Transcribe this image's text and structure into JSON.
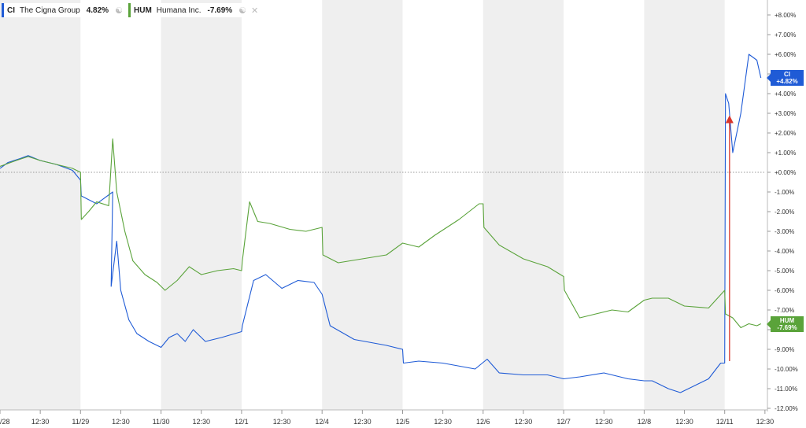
{
  "legend": [
    {
      "ticker": "CI",
      "name": "The Cigna Group",
      "change": "4.82%",
      "color": "#1f5bd6"
    },
    {
      "ticker": "HUM",
      "name": "Humana Inc.",
      "change": "-7.69%",
      "color": "#5aa33a"
    }
  ],
  "end_labels": [
    {
      "ticker": "CI",
      "value": "+4.82%",
      "color": "#1f5bd6"
    },
    {
      "ticker": "HUM",
      "value": "-7.69%",
      "color": "#5aa33a"
    }
  ],
  "chart_data": {
    "type": "line",
    "ylim": [
      -12,
      8
    ],
    "yticks": [
      "+8.00%",
      "+7.00%",
      "+6.00%",
      "+5.00%",
      "+4.00%",
      "+3.00%",
      "+2.00%",
      "+1.00%",
      "+0.00%",
      "-1.00%",
      "-2.00%",
      "-3.00%",
      "-4.00%",
      "-5.00%",
      "-6.00%",
      "-7.00%",
      "-8.00%",
      "-9.00%",
      "-10.00%",
      "-11.00%",
      "-12.00%"
    ],
    "xticks": [
      "/28",
      "12:30",
      "11/29",
      "12:30",
      "11/30",
      "12:30",
      "12/1",
      "12:30",
      "12/4",
      "12:30",
      "12/5",
      "12:30",
      "12/6",
      "12:30",
      "12/7",
      "12:30",
      "12/8",
      "12:30",
      "12/11",
      "12:30"
    ],
    "x_tick_positions": [
      0,
      0.5,
      1,
      1.5,
      2,
      2.5,
      3,
      3.5,
      4,
      4.5,
      5,
      5.5,
      6,
      6.5,
      7,
      7.5,
      8,
      8.5,
      9,
      9.5
    ],
    "baseline": 0,
    "shaded_sessions": [
      0,
      2,
      4,
      6,
      8
    ],
    "series": [
      {
        "name": "CI",
        "color": "#1f5bd6",
        "x": [
          0,
          0.1,
          0.25,
          0.35,
          0.5,
          0.7,
          0.9,
          1.0,
          1.01,
          1.2,
          1.4,
          1.38,
          1.45,
          1.5,
          1.6,
          1.7,
          1.85,
          2.0,
          2.1,
          2.2,
          2.3,
          2.4,
          2.55,
          2.75,
          3.0,
          3.01,
          3.15,
          3.3,
          3.5,
          3.7,
          3.9,
          4.0,
          4.1,
          4.4,
          4.8,
          5.0,
          5.01,
          5.2,
          5.5,
          5.9,
          6.05,
          6.2,
          6.5,
          6.8,
          7.0,
          7.2,
          7.5,
          7.8,
          8.0,
          8.1,
          8.3,
          8.45,
          8.6,
          8.8,
          8.95,
          9.0,
          9.01,
          9.05,
          9.1,
          9.2,
          9.3,
          9.4,
          9.45
        ],
        "y": [
          0.2,
          0.5,
          0.7,
          0.85,
          0.6,
          0.4,
          0.1,
          -0.4,
          -1.2,
          -1.6,
          -1.0,
          -5.8,
          -3.5,
          -6.0,
          -7.5,
          -8.2,
          -8.6,
          -8.9,
          -8.4,
          -8.2,
          -8.6,
          -8.0,
          -8.6,
          -8.4,
          -8.1,
          -7.8,
          -5.5,
          -5.2,
          -5.9,
          -5.5,
          -5.6,
          -6.2,
          -7.8,
          -8.5,
          -8.8,
          -9.0,
          -9.7,
          -9.6,
          -9.7,
          -10.0,
          -9.5,
          -10.2,
          -10.3,
          -10.3,
          -10.5,
          -10.4,
          -10.2,
          -10.5,
          -10.6,
          -10.6,
          -11.0,
          -11.2,
          -10.9,
          -10.5,
          -9.7,
          -9.7,
          4.0,
          3.5,
          1.0,
          3.0,
          6.0,
          5.7,
          4.8
        ]
      },
      {
        "name": "HUM",
        "color": "#5aa33a",
        "x": [
          0,
          0.2,
          0.35,
          0.5,
          0.7,
          0.9,
          1.0,
          1.01,
          1.1,
          1.2,
          1.35,
          1.4,
          1.45,
          1.55,
          1.65,
          1.8,
          1.95,
          2.05,
          2.2,
          2.35,
          2.5,
          2.7,
          2.9,
          3.0,
          3.01,
          3.1,
          3.2,
          3.35,
          3.6,
          3.8,
          4.0,
          4.01,
          4.2,
          4.5,
          4.8,
          5.0,
          5.2,
          5.4,
          5.7,
          5.95,
          6.0,
          6.01,
          6.2,
          6.5,
          6.8,
          7.0,
          7.01,
          7.2,
          7.4,
          7.6,
          7.8,
          8.0,
          8.1,
          8.3,
          8.5,
          8.8,
          9.0,
          9.01,
          9.1,
          9.2,
          9.3,
          9.4,
          9.45
        ],
        "y": [
          0.3,
          0.6,
          0.8,
          0.6,
          0.4,
          0.2,
          0.0,
          -2.4,
          -2.0,
          -1.5,
          -1.7,
          1.7,
          -1.0,
          -3.0,
          -4.5,
          -5.2,
          -5.6,
          -6.0,
          -5.5,
          -4.8,
          -5.2,
          -5.0,
          -4.9,
          -5.0,
          -4.5,
          -1.5,
          -2.5,
          -2.6,
          -2.9,
          -3.0,
          -2.8,
          -4.2,
          -4.6,
          -4.4,
          -4.2,
          -3.6,
          -3.8,
          -3.2,
          -2.4,
          -1.6,
          -1.6,
          -2.8,
          -3.7,
          -4.4,
          -4.8,
          -5.3,
          -6.0,
          -7.4,
          -7.2,
          -7.0,
          -7.1,
          -6.5,
          -6.4,
          -6.4,
          -6.8,
          -6.9,
          -6.0,
          -7.2,
          -7.4,
          -7.9,
          -7.7,
          -7.8,
          -7.7
        ]
      }
    ],
    "annotation": {
      "type": "arrow",
      "color": "#d9362b",
      "x": 9.06,
      "y_from": -9.6,
      "y_to": 2.9
    }
  }
}
